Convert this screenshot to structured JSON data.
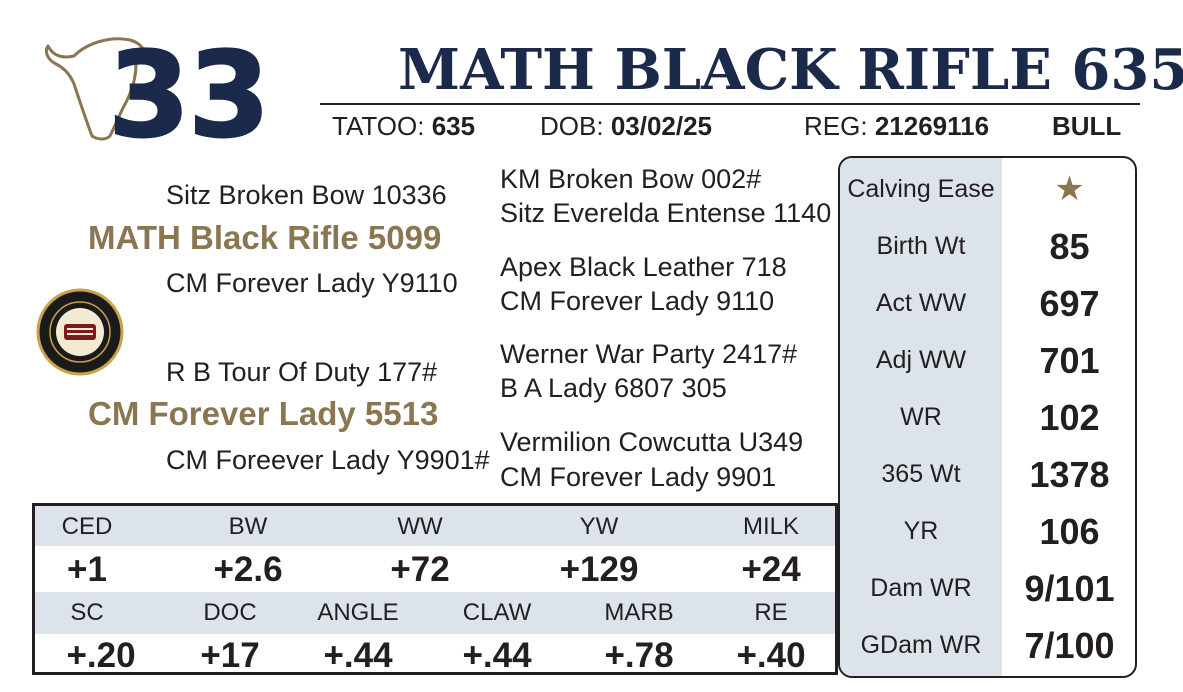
{
  "lot": {
    "number": "33",
    "name": "MATH BLACK RIFLE 635"
  },
  "ids": {
    "tattoo_label": "TATOO:",
    "tattoo_value": "635",
    "dob_label": "DOB:",
    "dob_value": "03/02/25",
    "reg_label": "REG:",
    "reg_value": "21269116",
    "sex": "BULL"
  },
  "pedigree": {
    "sire_sire": "Sitz Broken Bow 10336",
    "sire": "MATH Black Rifle 5099",
    "sire_dam": "CM Forever Lady Y9110",
    "dam_sire": "R B Tour Of Duty 177#",
    "dam": "CM Forever Lady 5513",
    "dam_dam": "CM Foreever Lady Y9901#",
    "great_grandparents": [
      "KM Broken Bow 002#",
      "Sitz Everelda Entense 1140",
      "Apex Black Leather 718",
      "CM Forever Lady 9110",
      "Werner War Party 2417#",
      "B A Lady 6807 305",
      "Vermilion Cowcutta U349",
      "CM Forever Lady 9901"
    ]
  },
  "badge": {
    "icon": "certified-angus-beef-seal"
  },
  "stats": [
    {
      "label": "Calving Ease",
      "value": "★"
    },
    {
      "label": "Birth Wt",
      "value": "85"
    },
    {
      "label": "Act WW",
      "value": "697"
    },
    {
      "label": "Adj WW",
      "value": "701"
    },
    {
      "label": "WR",
      "value": "102"
    },
    {
      "label": "365 Wt",
      "value": "1378"
    },
    {
      "label": "YR",
      "value": "106"
    },
    {
      "label": "Dam WR",
      "value": "9/101"
    },
    {
      "label": "GDam WR",
      "value": "7/100"
    }
  ],
  "epd": {
    "row1": [
      {
        "label": "CED",
        "value": "+1"
      },
      {
        "label": "BW",
        "value": "+2.6"
      },
      {
        "label": "WW",
        "value": "+72"
      },
      {
        "label": "YW",
        "value": "+129"
      },
      {
        "label": "MILK",
        "value": "+24"
      }
    ],
    "row2": [
      {
        "label": "SC",
        "value": "+.20"
      },
      {
        "label": "DOC",
        "value": "+17"
      },
      {
        "label": "ANGLE",
        "value": "+.44"
      },
      {
        "label": "CLAW",
        "value": "+.44"
      },
      {
        "label": "MARB",
        "value": "+.78"
      },
      {
        "label": "RE",
        "value": "+.40"
      }
    ]
  },
  "colors": {
    "navy": "#1b2a4a",
    "tan": "#8a7650",
    "panel_gray": "#dde3ea"
  }
}
